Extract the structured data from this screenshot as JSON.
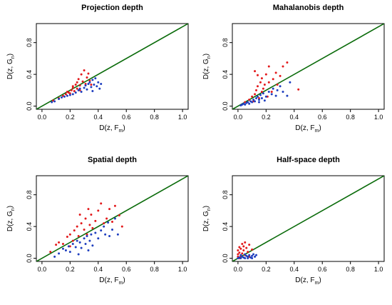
{
  "colors": {
    "red": "#e31a1c",
    "blue": "#1f3fbf",
    "diagonal": "#0a6b0a",
    "axis": "#000000"
  },
  "axis_text": {
    "xlabel_main": "D(z, F",
    "xlabel_sub": "m",
    "xlabel_close": ")",
    "ylabel_main": "D(z, G",
    "ylabel_sub": "n",
    "ylabel_close": ")"
  },
  "chart_data": [
    {
      "type": "scatter",
      "title": "Projection depth",
      "xlim": [
        0,
        1
      ],
      "ylim": [
        0,
        1
      ],
      "xticks": [
        "0.0",
        "0.2",
        "0.4",
        "0.6",
        "0.8",
        "1.0"
      ],
      "yticks": [
        "0.0",
        "0.4",
        "0.8"
      ],
      "reference_line": "y = x",
      "series": [
        {
          "color": "red",
          "points": [
            [
              0.08,
              0.07
            ],
            [
              0.12,
              0.1
            ],
            [
              0.15,
              0.13
            ],
            [
              0.17,
              0.15
            ],
            [
              0.18,
              0.18
            ],
            [
              0.2,
              0.16
            ],
            [
              0.21,
              0.2
            ],
            [
              0.22,
              0.23
            ],
            [
              0.23,
              0.19
            ],
            [
              0.24,
              0.27
            ],
            [
              0.25,
              0.3
            ],
            [
              0.25,
              0.22
            ],
            [
              0.26,
              0.34
            ],
            [
              0.27,
              0.26
            ],
            [
              0.28,
              0.4
            ],
            [
              0.29,
              0.31
            ],
            [
              0.3,
              0.45
            ],
            [
              0.31,
              0.28
            ],
            [
              0.32,
              0.36
            ],
            [
              0.33,
              0.41
            ],
            [
              0.34,
              0.32
            ],
            [
              0.35,
              0.27
            ],
            [
              0.22,
              0.25
            ],
            [
              0.19,
              0.17
            ],
            [
              0.27,
              0.2
            ]
          ]
        },
        {
          "color": "blue",
          "points": [
            [
              0.07,
              0.05
            ],
            [
              0.09,
              0.06
            ],
            [
              0.12,
              0.09
            ],
            [
              0.14,
              0.11
            ],
            [
              0.16,
              0.12
            ],
            [
              0.18,
              0.13
            ],
            [
              0.2,
              0.14
            ],
            [
              0.22,
              0.15
            ],
            [
              0.24,
              0.17
            ],
            [
              0.26,
              0.2
            ],
            [
              0.27,
              0.22
            ],
            [
              0.28,
              0.18
            ],
            [
              0.3,
              0.23
            ],
            [
              0.31,
              0.26
            ],
            [
              0.32,
              0.21
            ],
            [
              0.33,
              0.28
            ],
            [
              0.34,
              0.3
            ],
            [
              0.35,
              0.24
            ],
            [
              0.36,
              0.33
            ],
            [
              0.37,
              0.27
            ],
            [
              0.38,
              0.35
            ],
            [
              0.39,
              0.25
            ],
            [
              0.4,
              0.3
            ],
            [
              0.41,
              0.22
            ],
            [
              0.42,
              0.28
            ],
            [
              0.36,
              0.19
            ]
          ]
        }
      ]
    },
    {
      "type": "scatter",
      "title": "Mahalanobis depth",
      "xlim": [
        0,
        1
      ],
      "ylim": [
        0,
        1
      ],
      "xticks": [
        "0.0",
        "0.2",
        "0.4",
        "0.6",
        "0.8",
        "1.0"
      ],
      "yticks": [
        "0.0",
        "0.4",
        "0.8"
      ],
      "reference_line": "y = x",
      "series": [
        {
          "color": "red",
          "points": [
            [
              0.05,
              0.05
            ],
            [
              0.08,
              0.08
            ],
            [
              0.1,
              0.12
            ],
            [
              0.11,
              0.06
            ],
            [
              0.12,
              0.15
            ],
            [
              0.13,
              0.2
            ],
            [
              0.14,
              0.25
            ],
            [
              0.15,
              0.1
            ],
            [
              0.16,
              0.3
            ],
            [
              0.17,
              0.35
            ],
            [
              0.17,
              0.18
            ],
            [
              0.18,
              0.22
            ],
            [
              0.19,
              0.27
            ],
            [
              0.2,
              0.4
            ],
            [
              0.21,
              0.12
            ],
            [
              0.22,
              0.5
            ],
            [
              0.22,
              0.3
            ],
            [
              0.24,
              0.18
            ],
            [
              0.25,
              0.34
            ],
            [
              0.27,
              0.42
            ],
            [
              0.28,
              0.27
            ],
            [
              0.3,
              0.38
            ],
            [
              0.32,
              0.5
            ],
            [
              0.35,
              0.55
            ],
            [
              0.43,
              0.21
            ],
            [
              0.14,
              0.39
            ],
            [
              0.12,
              0.44
            ]
          ]
        },
        {
          "color": "blue",
          "points": [
            [
              0.02,
              0.01
            ],
            [
              0.03,
              0.02
            ],
            [
              0.04,
              0.03
            ],
            [
              0.05,
              0.02
            ],
            [
              0.06,
              0.04
            ],
            [
              0.07,
              0.05
            ],
            [
              0.08,
              0.03
            ],
            [
              0.09,
              0.06
            ],
            [
              0.1,
              0.05
            ],
            [
              0.11,
              0.08
            ],
            [
              0.12,
              0.06
            ],
            [
              0.13,
              0.1
            ],
            [
              0.14,
              0.12
            ],
            [
              0.15,
              0.08
            ],
            [
              0.16,
              0.14
            ],
            [
              0.17,
              0.1
            ],
            [
              0.18,
              0.16
            ],
            [
              0.2,
              0.12
            ],
            [
              0.22,
              0.18
            ],
            [
              0.24,
              0.15
            ],
            [
              0.25,
              0.22
            ],
            [
              0.27,
              0.13
            ],
            [
              0.28,
              0.2
            ],
            [
              0.3,
              0.25
            ],
            [
              0.32,
              0.18
            ],
            [
              0.35,
              0.13
            ],
            [
              0.37,
              0.3
            ],
            [
              0.15,
              0.05
            ],
            [
              0.19,
              0.07
            ]
          ]
        }
      ]
    },
    {
      "type": "scatter",
      "title": "Spatial depth",
      "xlim": [
        0,
        1
      ],
      "ylim": [
        0,
        1
      ],
      "xticks": [
        "0.0",
        "0.2",
        "0.4",
        "0.6",
        "0.8",
        "1.0"
      ],
      "yticks": [
        "0.0",
        "0.4",
        "0.8"
      ],
      "reference_line": "y = x",
      "series": [
        {
          "color": "red",
          "points": [
            [
              0.06,
              0.08
            ],
            [
              0.1,
              0.17
            ],
            [
              0.12,
              0.2
            ],
            [
              0.15,
              0.18
            ],
            [
              0.18,
              0.27
            ],
            [
              0.2,
              0.3
            ],
            [
              0.22,
              0.22
            ],
            [
              0.23,
              0.35
            ],
            [
              0.25,
              0.4
            ],
            [
              0.26,
              0.28
            ],
            [
              0.28,
              0.44
            ],
            [
              0.3,
              0.36
            ],
            [
              0.31,
              0.5
            ],
            [
              0.32,
              0.3
            ],
            [
              0.34,
              0.42
            ],
            [
              0.35,
              0.55
            ],
            [
              0.36,
              0.38
            ],
            [
              0.38,
              0.47
            ],
            [
              0.4,
              0.6
            ],
            [
              0.42,
              0.69
            ],
            [
              0.44,
              0.44
            ],
            [
              0.46,
              0.5
            ],
            [
              0.48,
              0.62
            ],
            [
              0.5,
              0.46
            ],
            [
              0.52,
              0.66
            ],
            [
              0.55,
              0.54
            ],
            [
              0.57,
              0.4
            ],
            [
              0.2,
              0.15
            ],
            [
              0.27,
              0.55
            ],
            [
              0.33,
              0.62
            ]
          ]
        },
        {
          "color": "blue",
          "points": [
            [
              0.09,
              0.02
            ],
            [
              0.12,
              0.06
            ],
            [
              0.15,
              0.12
            ],
            [
              0.17,
              0.1
            ],
            [
              0.19,
              0.15
            ],
            [
              0.2,
              0.08
            ],
            [
              0.22,
              0.18
            ],
            [
              0.24,
              0.14
            ],
            [
              0.25,
              0.22
            ],
            [
              0.27,
              0.2
            ],
            [
              0.28,
              0.13
            ],
            [
              0.3,
              0.25
            ],
            [
              0.31,
              0.18
            ],
            [
              0.32,
              0.28
            ],
            [
              0.34,
              0.22
            ],
            [
              0.35,
              0.3
            ],
            [
              0.36,
              0.16
            ],
            [
              0.38,
              0.32
            ],
            [
              0.4,
              0.25
            ],
            [
              0.42,
              0.35
            ],
            [
              0.44,
              0.4
            ],
            [
              0.45,
              0.3
            ],
            [
              0.47,
              0.45
            ],
            [
              0.48,
              0.28
            ],
            [
              0.5,
              0.36
            ],
            [
              0.52,
              0.5
            ],
            [
              0.54,
              0.3
            ],
            [
              0.26,
              0.05
            ],
            [
              0.33,
              0.1
            ]
          ]
        }
      ]
    },
    {
      "type": "scatter",
      "title": "Half-space depth",
      "xlim": [
        0,
        1
      ],
      "ylim": [
        0,
        1
      ],
      "xticks": [
        "0.0",
        "0.2",
        "0.4",
        "0.6",
        "0.8",
        "1.0"
      ],
      "yticks": [
        "0.0",
        "0.4",
        "0.8"
      ],
      "reference_line": "y = x",
      "series": [
        {
          "color": "red",
          "points": [
            [
              0.0,
              0.02
            ],
            [
              0.0,
              0.05
            ],
            [
              0.0,
              0.1
            ],
            [
              0.01,
              0.14
            ],
            [
              0.01,
              0.07
            ],
            [
              0.02,
              0.03
            ],
            [
              0.02,
              0.12
            ],
            [
              0.03,
              0.18
            ],
            [
              0.03,
              0.06
            ],
            [
              0.04,
              0.1
            ],
            [
              0.05,
              0.2
            ],
            [
              0.05,
              0.04
            ],
            [
              0.06,
              0.13
            ],
            [
              0.07,
              0.08
            ],
            [
              0.08,
              0.17
            ],
            [
              0.08,
              0.02
            ],
            [
              0.1,
              0.11
            ],
            [
              0.04,
              0.15
            ],
            [
              0.01,
              0.0
            ]
          ]
        },
        {
          "color": "blue",
          "points": [
            [
              0.0,
              0.0
            ],
            [
              0.01,
              0.01
            ],
            [
              0.02,
              0.0
            ],
            [
              0.03,
              0.02
            ],
            [
              0.04,
              0.01
            ],
            [
              0.05,
              0.0
            ],
            [
              0.06,
              0.03
            ],
            [
              0.07,
              0.02
            ],
            [
              0.08,
              0.04
            ],
            [
              0.09,
              0.01
            ],
            [
              0.1,
              0.03
            ],
            [
              0.11,
              0.05
            ],
            [
              0.12,
              0.02
            ],
            [
              0.13,
              0.04
            ],
            [
              0.02,
              0.04
            ],
            [
              0.05,
              0.05
            ],
            [
              0.07,
              0.0
            ],
            [
              0.1,
              0.0
            ]
          ]
        }
      ]
    }
  ]
}
